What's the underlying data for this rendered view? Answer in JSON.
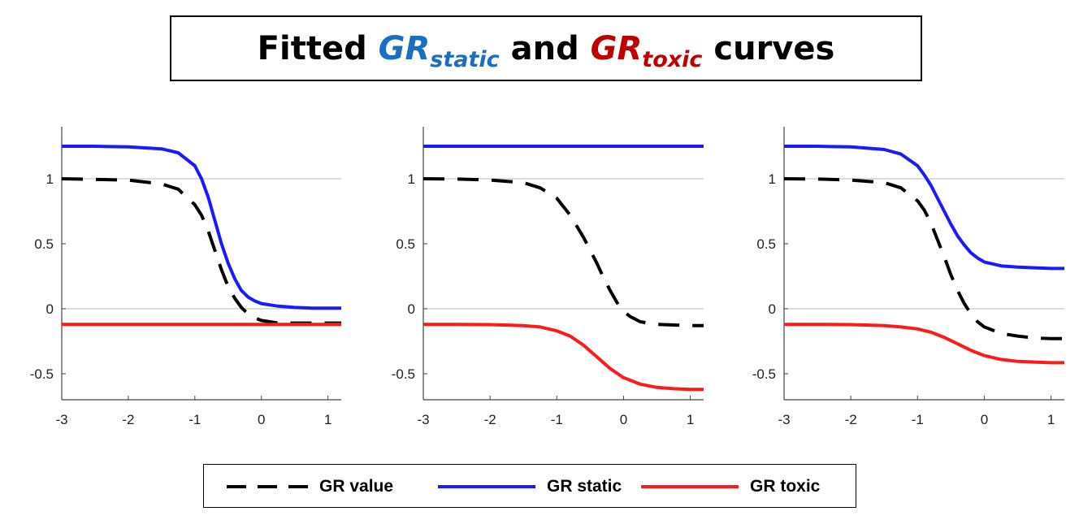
{
  "title": {
    "prefix": "Fitted",
    "static_main": "GR",
    "static_sub": "static",
    "middle": "and",
    "toxic_main": "GR",
    "toxic_sub": "toxic",
    "suffix": "curves",
    "static_color": "#1a6fbf",
    "toxic_color": "#c00000"
  },
  "legend": {
    "items": [
      {
        "label": "GR value",
        "color": "#000000",
        "style": "dashed"
      },
      {
        "label": "GR static",
        "color": "#1a1aff",
        "style": "solid"
      },
      {
        "label": "GR toxic",
        "color": "#ff1a1a",
        "style": "solid"
      }
    ]
  },
  "chart_data": [
    {
      "type": "line",
      "xlim": [
        -3,
        1.2
      ],
      "ylim": [
        -0.7,
        1.4
      ],
      "xticks": [
        -3,
        -2,
        -1,
        0,
        1
      ],
      "yticks": [
        -0.5,
        0,
        0.5,
        1
      ],
      "ytick_labels": [
        "-0.5",
        "0",
        "0.5",
        "1"
      ],
      "reference_lines_y": [
        0,
        1
      ],
      "series": [
        {
          "name": "GR value",
          "color": "#000000",
          "style": "dashed",
          "x": [
            -3,
            -2.5,
            -2,
            -1.5,
            -1.25,
            -1,
            -0.9,
            -0.8,
            -0.7,
            -0.6,
            -0.5,
            -0.4,
            -0.3,
            -0.2,
            -0.1,
            0,
            0.25,
            0.5,
            0.75,
            1,
            1.2
          ],
          "y": [
            1.0,
            0.995,
            0.99,
            0.96,
            0.92,
            0.8,
            0.72,
            0.6,
            0.45,
            0.3,
            0.17,
            0.08,
            0.01,
            -0.04,
            -0.07,
            -0.09,
            -0.11,
            -0.11,
            -0.11,
            -0.11,
            -0.11
          ]
        },
        {
          "name": "GR static",
          "color": "#1a1aff",
          "style": "solid",
          "x": [
            -3,
            -2.5,
            -2,
            -1.5,
            -1.25,
            -1,
            -0.9,
            -0.8,
            -0.7,
            -0.6,
            -0.5,
            -0.4,
            -0.3,
            -0.2,
            -0.1,
            0,
            0.25,
            0.5,
            0.75,
            1,
            1.2
          ],
          "y": [
            1.25,
            1.25,
            1.245,
            1.23,
            1.2,
            1.1,
            1.0,
            0.86,
            0.68,
            0.5,
            0.35,
            0.23,
            0.14,
            0.09,
            0.06,
            0.04,
            0.02,
            0.01,
            0.005,
            0.005,
            0.005
          ]
        },
        {
          "name": "GR toxic",
          "color": "#ff1a1a",
          "style": "solid",
          "x": [
            -3,
            1.2
          ],
          "y": [
            -0.12,
            -0.12
          ]
        }
      ]
    },
    {
      "type": "line",
      "xlim": [
        -3,
        1.2
      ],
      "ylim": [
        -0.7,
        1.4
      ],
      "xticks": [
        -3,
        -2,
        -1,
        0,
        1
      ],
      "yticks": [
        -0.5,
        0,
        0.5,
        1
      ],
      "ytick_labels": [
        "-0.5",
        "0",
        "0.5",
        "1"
      ],
      "reference_lines_y": [
        0,
        1
      ],
      "series": [
        {
          "name": "GR value",
          "color": "#000000",
          "style": "dashed",
          "x": [
            -3,
            -2.5,
            -2,
            -1.5,
            -1.25,
            -1,
            -0.8,
            -0.6,
            -0.5,
            -0.4,
            -0.3,
            -0.2,
            -0.1,
            0,
            0.1,
            0.25,
            0.5,
            0.75,
            1,
            1.2
          ],
          "y": [
            1.0,
            0.998,
            0.99,
            0.97,
            0.93,
            0.85,
            0.72,
            0.55,
            0.45,
            0.35,
            0.24,
            0.14,
            0.05,
            -0.02,
            -0.06,
            -0.1,
            -0.12,
            -0.125,
            -0.13,
            -0.13
          ]
        },
        {
          "name": "GR static",
          "color": "#1a1aff",
          "style": "solid",
          "x": [
            -3,
            1.2
          ],
          "y": [
            1.25,
            1.25
          ]
        },
        {
          "name": "GR toxic",
          "color": "#ff1a1a",
          "style": "solid",
          "x": [
            -3,
            -2.5,
            -2,
            -1.5,
            -1.25,
            -1,
            -0.8,
            -0.6,
            -0.4,
            -0.2,
            0,
            0.25,
            0.5,
            0.75,
            1,
            1.2
          ],
          "y": [
            -0.12,
            -0.12,
            -0.122,
            -0.13,
            -0.14,
            -0.17,
            -0.21,
            -0.28,
            -0.37,
            -0.46,
            -0.53,
            -0.58,
            -0.605,
            -0.615,
            -0.62,
            -0.62
          ]
        }
      ]
    },
    {
      "type": "line",
      "xlim": [
        -3,
        1.2
      ],
      "ylim": [
        -0.7,
        1.4
      ],
      "xticks": [
        -3,
        -2,
        -1,
        0,
        1
      ],
      "yticks": [
        -0.5,
        0,
        0.5,
        1
      ],
      "ytick_labels": [
        "-0.5",
        "0",
        "0.5",
        "1"
      ],
      "reference_lines_y": [
        0,
        1
      ],
      "series": [
        {
          "name": "GR value",
          "color": "#000000",
          "style": "dashed",
          "x": [
            -3,
            -2.5,
            -2,
            -1.5,
            -1.25,
            -1,
            -0.9,
            -0.8,
            -0.7,
            -0.6,
            -0.5,
            -0.4,
            -0.3,
            -0.2,
            -0.1,
            0,
            0.25,
            0.5,
            0.75,
            1,
            1.2
          ],
          "y": [
            1.0,
            0.998,
            0.99,
            0.97,
            0.93,
            0.83,
            0.76,
            0.66,
            0.53,
            0.4,
            0.26,
            0.14,
            0.04,
            -0.04,
            -0.1,
            -0.14,
            -0.19,
            -0.21,
            -0.225,
            -0.23,
            -0.23
          ]
        },
        {
          "name": "GR static",
          "color": "#1a1aff",
          "style": "solid",
          "x": [
            -3,
            -2.5,
            -2,
            -1.5,
            -1.25,
            -1,
            -0.9,
            -0.8,
            -0.7,
            -0.6,
            -0.5,
            -0.4,
            -0.3,
            -0.2,
            -0.1,
            0,
            0.25,
            0.5,
            0.75,
            1,
            1.2
          ],
          "y": [
            1.25,
            1.25,
            1.245,
            1.225,
            1.19,
            1.1,
            1.03,
            0.95,
            0.85,
            0.75,
            0.65,
            0.56,
            0.49,
            0.43,
            0.39,
            0.36,
            0.33,
            0.32,
            0.315,
            0.31,
            0.31
          ]
        },
        {
          "name": "GR toxic",
          "color": "#ff1a1a",
          "style": "solid",
          "x": [
            -3,
            -2.5,
            -2,
            -1.5,
            -1.25,
            -1,
            -0.8,
            -0.6,
            -0.4,
            -0.2,
            0,
            0.25,
            0.5,
            0.75,
            1,
            1.2
          ],
          "y": [
            -0.12,
            -0.12,
            -0.122,
            -0.13,
            -0.14,
            -0.155,
            -0.18,
            -0.22,
            -0.27,
            -0.32,
            -0.36,
            -0.39,
            -0.405,
            -0.41,
            -0.415,
            -0.415
          ]
        }
      ]
    }
  ]
}
